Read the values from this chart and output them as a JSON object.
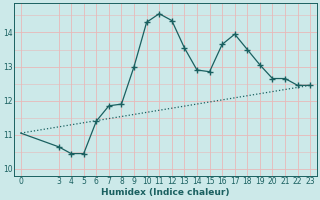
{
  "xlabel": "Humidex (Indice chaleur)",
  "bg_color": "#cce9e9",
  "grid_color": "#e8b8b8",
  "line_color": "#1a6060",
  "x_data": [
    0,
    3,
    4,
    5,
    6,
    7,
    8,
    9,
    10,
    11,
    12,
    13,
    14,
    15,
    16,
    17,
    18,
    19,
    20,
    21,
    22,
    23
  ],
  "y_data": [
    11.05,
    10.65,
    10.45,
    10.45,
    11.4,
    11.85,
    11.9,
    13.0,
    14.3,
    14.55,
    14.35,
    13.55,
    12.9,
    12.85,
    13.65,
    13.95,
    13.5,
    13.05,
    12.65,
    12.65,
    12.45,
    12.45
  ],
  "markers_x": [
    3,
    4,
    5,
    6,
    7,
    8,
    9,
    10,
    11,
    12,
    13,
    14,
    15,
    16,
    17,
    18,
    19,
    20,
    21,
    22,
    23
  ],
  "markers_y": [
    10.65,
    10.45,
    10.45,
    11.4,
    11.85,
    11.9,
    13.0,
    14.3,
    14.55,
    14.35,
    13.55,
    12.9,
    12.85,
    13.65,
    13.95,
    13.5,
    13.05,
    12.65,
    12.65,
    12.45,
    12.45
  ],
  "trend_x": [
    0,
    23
  ],
  "trend_y": [
    11.05,
    12.45
  ],
  "xlim": [
    -0.5,
    23.5
  ],
  "ylim": [
    9.8,
    14.85
  ],
  "xticks": [
    0,
    3,
    4,
    5,
    6,
    7,
    8,
    9,
    10,
    11,
    12,
    13,
    14,
    15,
    16,
    17,
    18,
    19,
    20,
    21,
    22,
    23
  ],
  "yticks": [
    10,
    11,
    12,
    13,
    14
  ],
  "tick_fontsize": 5.5,
  "label_fontsize": 6.5
}
